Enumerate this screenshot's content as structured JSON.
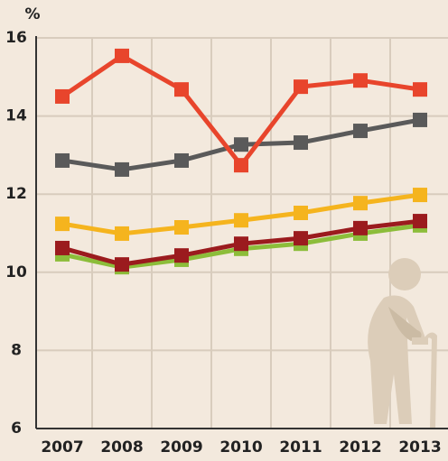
{
  "chart_data": {
    "type": "line",
    "y_label": "%",
    "categories": [
      "2007",
      "2008",
      "2009",
      "2010",
      "2011",
      "2012",
      "2013"
    ],
    "series": [
      {
        "color": "#8cbd3a",
        "values": [
          10.46,
          10.13,
          10.32,
          10.6,
          10.73,
          10.99,
          11.2
        ]
      },
      {
        "color": "#9b1b1e",
        "values": [
          10.62,
          10.2,
          10.43,
          10.73,
          10.87,
          11.13,
          11.31
        ]
      },
      {
        "color": "#f5b41e",
        "values": [
          11.24,
          10.99,
          11.15,
          11.33,
          11.52,
          11.77,
          11.98
        ]
      },
      {
        "color": "#5a5a5a",
        "values": [
          12.86,
          12.63,
          12.86,
          13.27,
          13.32,
          13.62,
          13.9
        ]
      },
      {
        "color": "#e8452c",
        "values": [
          14.5,
          15.54,
          14.68,
          12.74,
          14.75,
          14.91,
          14.68
        ]
      }
    ],
    "ylim": [
      6,
      16
    ],
    "yticks": [
      6,
      8,
      10,
      12,
      14,
      16
    ],
    "grid": true
  }
}
